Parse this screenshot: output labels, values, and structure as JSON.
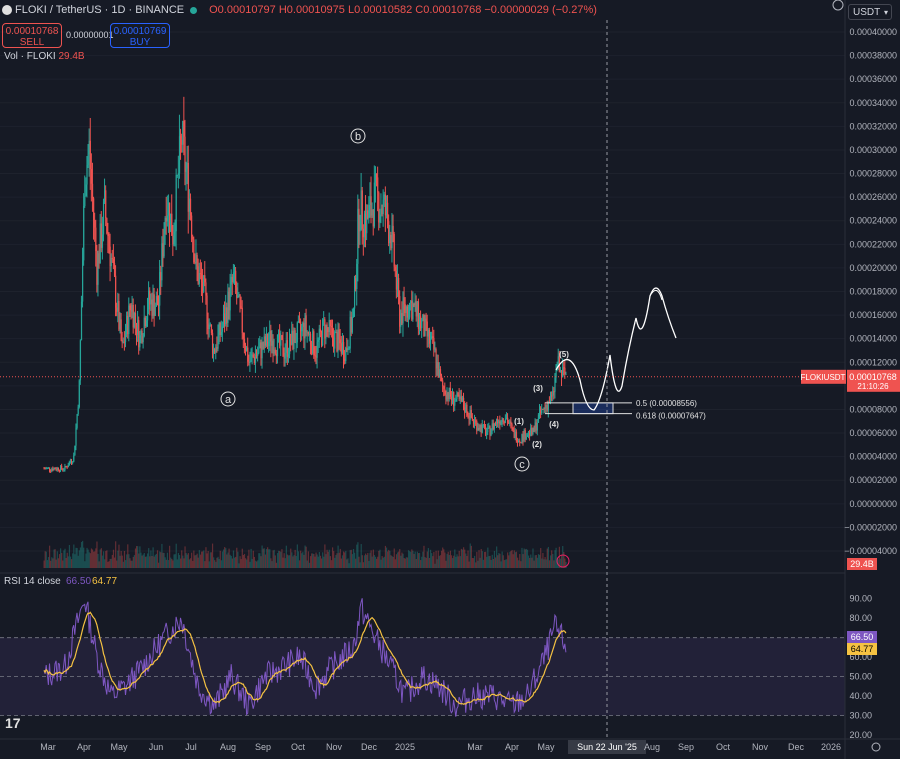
{
  "header": {
    "symbol": "FLOKI / TetherUS · 1D · BINANCE",
    "ohlc": "O0.00010797 H0.00010975 L0.00010582 C0.00010768 −0.00000029 (−0.27%)",
    "sell_price": "0.00010768",
    "sell_label": "SELL",
    "spread": "0.00000001",
    "buy_price": "0.00010769",
    "buy_label": "BUY",
    "vol_label": "Vol · FLOKI",
    "vol_value": "29.4B",
    "currency": "USDT"
  },
  "colors": {
    "up": "#26a69a",
    "down": "#ef5350",
    "rsi": "#7e57c2",
    "rsi_ma": "#f5c242",
    "bg": "#161a25"
  },
  "chart_data": [
    {
      "type": "candlestick",
      "pair": "FLOKIUSDT",
      "timeframe": "1D",
      "y_axis_labels": [
        "0.00040000",
        "0.00038000",
        "0.00036000",
        "0.00034000",
        "0.00032000",
        "0.00030000",
        "0.00028000",
        "0.00026000",
        "0.00024000",
        "0.00022000",
        "0.00020000",
        "0.00018000",
        "0.00016000",
        "0.00014000",
        "0.00012000",
        "0.00010000",
        "0.00008000",
        "0.00006000",
        "0.00004000",
        "0.00002000",
        "0.00000000",
        "−0.00002000",
        "−0.00004000"
      ],
      "ylim": [
        -4e-05,
        0.0004
      ],
      "x_axis_labels": [
        "Mar",
        "Apr",
        "May",
        "Jun",
        "Jul",
        "Aug",
        "Sep",
        "Oct",
        "Nov",
        "Dec",
        "2025",
        "Mar",
        "Apr",
        "May",
        "Sun 22 Jun '25",
        "Aug",
        "Sep",
        "Oct",
        "Nov",
        "Dec",
        "2026"
      ],
      "last_price_label": "FLOKIUSDT",
      "last_price": "0.00010768",
      "countdown": "21:10:26",
      "volume_label": "29.4B",
      "price_path": [
        [
          "2024-02-01",
          3e-05
        ],
        [
          "2024-02-20",
          3e-05
        ],
        [
          "2024-02-28",
          4e-05
        ],
        [
          "2024-03-04",
          0.0001
        ],
        [
          "2024-03-09",
          0.00028
        ],
        [
          "2024-03-13",
          0.0003
        ],
        [
          "2024-03-20",
          0.0002
        ],
        [
          "2024-03-27",
          0.00025
        ],
        [
          "2024-04-03",
          0.0002
        ],
        [
          "2024-04-12",
          0.00013
        ],
        [
          "2024-04-20",
          0.00017
        ],
        [
          "2024-04-28",
          0.00014
        ],
        [
          "2024-05-05",
          0.00017
        ],
        [
          "2024-05-15",
          0.00017
        ],
        [
          "2024-05-22",
          0.00026
        ],
        [
          "2024-05-28",
          0.00023
        ],
        [
          "2024-06-05",
          0.00031
        ],
        [
          "2024-06-12",
          0.00026
        ],
        [
          "2024-06-18",
          0.0002
        ],
        [
          "2024-06-25",
          0.00018
        ],
        [
          "2024-07-04",
          0.00013
        ],
        [
          "2024-07-12",
          0.00015
        ],
        [
          "2024-07-22",
          0.00019
        ],
        [
          "2024-07-28",
          0.00016
        ],
        [
          "2024-08-05",
          0.00012
        ],
        [
          "2024-08-15",
          0.00013
        ],
        [
          "2024-08-25",
          0.00014
        ],
        [
          "2024-09-06",
          0.00013
        ],
        [
          "2024-09-15",
          0.00014
        ],
        [
          "2024-09-25",
          0.00015
        ],
        [
          "2024-10-05",
          0.00013
        ],
        [
          "2024-10-12",
          0.00015
        ],
        [
          "2024-10-22",
          0.00014
        ],
        [
          "2024-11-01",
          0.00013
        ],
        [
          "2024-11-08",
          0.00016
        ],
        [
          "2024-11-13",
          0.00025
        ],
        [
          "2024-11-20",
          0.00024
        ],
        [
          "2024-11-28",
          0.00026
        ],
        [
          "2024-12-06",
          0.00025
        ],
        [
          "2024-12-12",
          0.00023
        ],
        [
          "2024-12-20",
          0.00016
        ],
        [
          "2024-12-30",
          0.00017
        ],
        [
          "2025-01-10",
          0.00015
        ],
        [
          "2025-01-20",
          0.00013
        ],
        [
          "2025-01-27",
          0.0001
        ],
        [
          "2025-02-05",
          9e-05
        ],
        [
          "2025-02-15",
          8.5e-05
        ],
        [
          "2025-02-25",
          7e-05
        ],
        [
          "2025-03-10",
          6e-05
        ],
        [
          "2025-03-18",
          7e-05
        ],
        [
          "2025-03-26",
          7.5e-05
        ],
        [
          "2025-04-02",
          6e-05
        ],
        [
          "2025-04-08",
          5.5e-05
        ],
        [
          "2025-04-14",
          6e-05
        ],
        [
          "2025-04-20",
          6e-05
        ],
        [
          "2025-04-26",
          7.5e-05
        ],
        [
          "2025-05-03",
          8.5e-05
        ],
        [
          "2025-05-08",
          9e-05
        ],
        [
          "2025-05-12",
          0.00012
        ],
        [
          "2025-05-15",
          0.00011
        ],
        [
          "2025-05-20",
          0.00011
        ]
      ]
    },
    {
      "type": "line",
      "indicator": "RSI 14 close",
      "rsi_value": "66.50",
      "ma_value": "64.77",
      "y_axis_labels": [
        "90.00",
        "80.00",
        "70.00",
        "60.00",
        "50.00",
        "40.00",
        "30.00",
        "20.00"
      ],
      "ylim": [
        20,
        95
      ],
      "band": [
        30,
        70
      ],
      "path": [
        [
          "2024-02-01",
          50
        ],
        [
          "2024-02-20",
          55
        ],
        [
          "2024-03-01",
          75
        ],
        [
          "2024-03-09",
          90
        ],
        [
          "2024-03-20",
          60
        ],
        [
          "2024-04-02",
          40
        ],
        [
          "2024-04-15",
          45
        ],
        [
          "2024-05-01",
          55
        ],
        [
          "2024-05-20",
          70
        ],
        [
          "2024-06-05",
          80
        ],
        [
          "2024-06-20",
          45
        ],
        [
          "2024-07-05",
          35
        ],
        [
          "2024-07-20",
          50
        ],
        [
          "2024-08-05",
          35
        ],
        [
          "2024-08-20",
          50
        ],
        [
          "2024-09-05",
          55
        ],
        [
          "2024-09-20",
          60
        ],
        [
          "2024-10-05",
          45
        ],
        [
          "2024-10-20",
          55
        ],
        [
          "2024-11-08",
          65
        ],
        [
          "2024-11-15",
          85
        ],
        [
          "2024-11-28",
          70
        ],
        [
          "2024-12-12",
          55
        ],
        [
          "2024-12-25",
          40
        ],
        [
          "2025-01-10",
          50
        ],
        [
          "2025-01-25",
          45
        ],
        [
          "2025-02-08",
          35
        ],
        [
          "2025-02-25",
          40
        ],
        [
          "2025-03-15",
          40
        ],
        [
          "2025-04-01",
          35
        ],
        [
          "2025-04-15",
          40
        ],
        [
          "2025-05-01",
          60
        ],
        [
          "2025-05-10",
          75
        ],
        [
          "2025-05-20",
          66.5
        ]
      ]
    }
  ],
  "annotations": {
    "wave_labels": [
      "a",
      "b",
      "c"
    ],
    "sub_waves": [
      "(1)",
      "(2)",
      "(3)",
      "(4)",
      "(5)"
    ],
    "fib_05": "0.5 (0.00008556)",
    "fib_0618": "0.618 (0.00007647)"
  }
}
